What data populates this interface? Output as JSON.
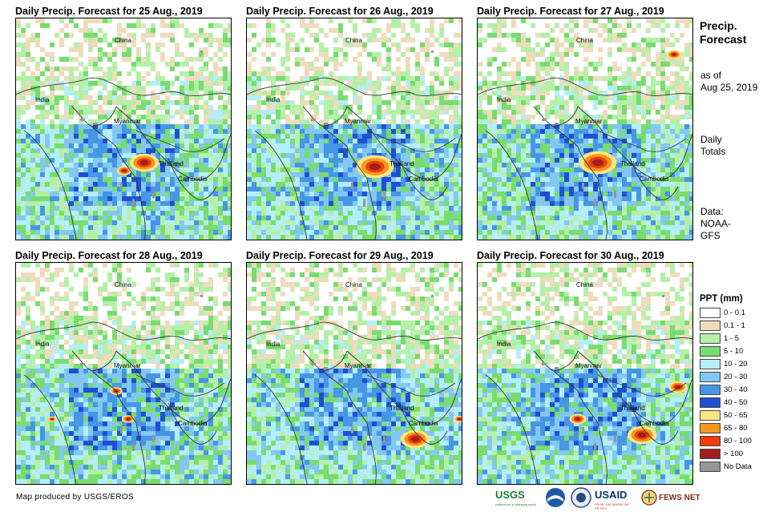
{
  "panels": [
    {
      "title": "Daily Precip. Forecast for 25 Aug., 2019",
      "seed": 25
    },
    {
      "title": "Daily Precip. Forecast for 26 Aug., 2019",
      "seed": 26
    },
    {
      "title": "Daily Precip. Forecast for 27 Aug., 2019",
      "seed": 27
    },
    {
      "title": "Daily Precip. Forecast for 28 Aug., 2019",
      "seed": 28
    },
    {
      "title": "Daily Precip. Forecast for 29 Aug., 2019",
      "seed": 29
    },
    {
      "title": "Daily Precip. Forecast for 30 Aug., 2019",
      "seed": 30
    }
  ],
  "labels": {
    "china": "China",
    "india": "India",
    "myanmar": "Myanmar",
    "thailand": "Thailand",
    "cambodia": "Cambodia"
  },
  "side": {
    "title_line1": "Precip.",
    "title_line2": "Forecast",
    "asof_line1": "as of",
    "asof_line2": "Aug 25, 2019",
    "totals_line1": "Daily",
    "totals_line2": "Totals",
    "data_line1": "Data:",
    "data_line2": "NOAA-",
    "data_line3": "GFS"
  },
  "legend": {
    "title": "PPT (mm)",
    "items": [
      {
        "label": "0 - 0.1",
        "color": "#ffffff"
      },
      {
        "label": "0.1 - 1",
        "color": "#eedcbc"
      },
      {
        "label": "1 - 5",
        "color": "#b4f0a8"
      },
      {
        "label": "5 - 10",
        "color": "#78dc6e"
      },
      {
        "label": "10 - 20",
        "color": "#b4eefa"
      },
      {
        "label": "20 - 30",
        "color": "#82c8f0"
      },
      {
        "label": "30 - 40",
        "color": "#4696e6"
      },
      {
        "label": "40 - 50",
        "color": "#1e50d2"
      },
      {
        "label": "50 - 65",
        "color": "#fae682"
      },
      {
        "label": "65 - 80",
        "color": "#f5961e"
      },
      {
        "label": "80 - 100",
        "color": "#f03c0a"
      },
      {
        "label": "> 100",
        "color": "#a01e1e"
      },
      {
        "label": "No Data",
        "color": "#969696"
      }
    ]
  },
  "credit": "Map produced by USGS/EROS",
  "logos": {
    "usgs": "USGS",
    "usgs_caption": "science for a changing world",
    "usaid": "USAID",
    "usaid_caption": "FROM THE AMERICAN PEOPLE",
    "fewsnet": "FEWS NET"
  }
}
